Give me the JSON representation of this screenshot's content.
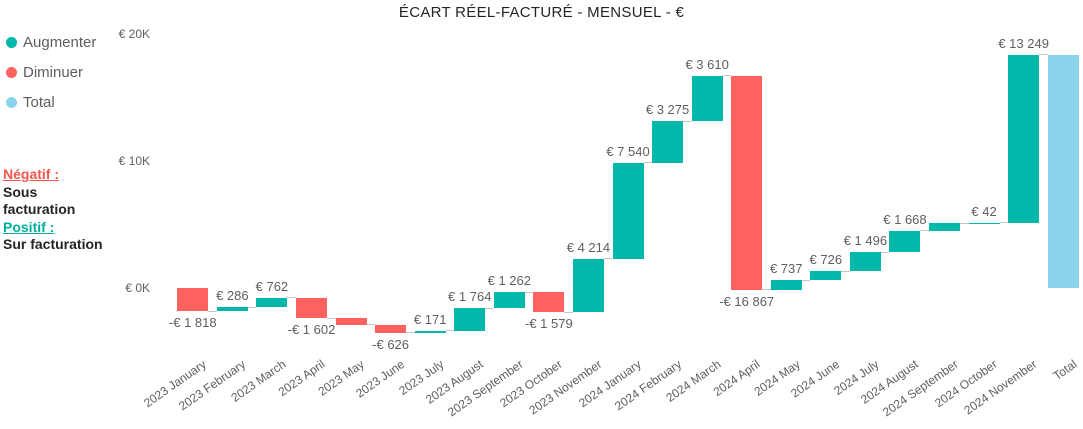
{
  "chart_data": {
    "type": "bar",
    "subtype": "waterfall",
    "title": "ÉCART RÉEL-FACTURÉ - MENSUEL - €",
    "grid": false,
    "legend_position": "top-left",
    "legend": [
      {
        "label": "Augmenter",
        "color": "#01B8AA",
        "kind": "increase"
      },
      {
        "label": "Diminuer",
        "color": "#FD625E",
        "kind": "decrease"
      },
      {
        "label": "Total",
        "color": "#8AD4EB",
        "kind": "total"
      }
    ],
    "colors": {
      "increase": "#01B8AA",
      "decrease": "#FD625E",
      "total": "#8AD4EB",
      "data_label": "#605E5C",
      "axis_label": "#605E5C",
      "connector": "#C8C6C4",
      "title": "#252423"
    },
    "y_axis": {
      "ticks": [
        {
          "label": "€ 20K",
          "value": 20000
        },
        {
          "label": "€ 10K",
          "value": 10000
        },
        {
          "label": "€ 0K",
          "value": 0
        }
      ],
      "range": [
        -4000,
        21000
      ]
    },
    "categories": [
      "2023 January",
      "2023 February",
      "2023 March",
      "2023 April",
      "2023 May",
      "2023 June",
      "2023 July",
      "2023 August",
      "2023 September",
      "2023 October",
      "2023 November",
      "2024 January",
      "2024 February",
      "2024 March",
      "2024 April",
      "2024 May",
      "2024 June",
      "2024 July",
      "2024 August",
      "2024 September",
      "2024 October",
      "2024 November",
      "Total"
    ],
    "points": [
      {
        "category": "2023 January",
        "value": -1818,
        "label": "-€ 1 818",
        "kind": "decrease"
      },
      {
        "category": "2023 February",
        "value": 286,
        "label": "€ 286",
        "kind": "increase"
      },
      {
        "category": "2023 March",
        "value": 762,
        "label": "€ 762",
        "kind": "increase"
      },
      {
        "category": "2023 April",
        "value": -1602,
        "label": "-€ 1 602",
        "kind": "decrease"
      },
      {
        "category": "2023 May",
        "value": -530,
        "label": null,
        "kind": "decrease"
      },
      {
        "category": "2023 June",
        "value": -626,
        "label": "-€ 626",
        "kind": "decrease"
      },
      {
        "category": "2023 July",
        "value": 171,
        "label": "€ 171",
        "kind": "increase"
      },
      {
        "category": "2023 August",
        "value": 1764,
        "label": "€ 1 764",
        "kind": "increase"
      },
      {
        "category": "2023 September",
        "value": 1262,
        "label": "€ 1 262",
        "kind": "increase"
      },
      {
        "category": "2023 October",
        "value": -1579,
        "label": "-€ 1 579",
        "kind": "decrease"
      },
      {
        "category": "2023 November",
        "value": 4214,
        "label": "€ 4 214",
        "kind": "increase"
      },
      {
        "category": "2024 January",
        "value": 7540,
        "label": "€ 7 540",
        "kind": "increase"
      },
      {
        "category": "2024 February",
        "value": 3275,
        "label": "€ 3 275",
        "kind": "increase"
      },
      {
        "category": "2024 March",
        "value": 3610,
        "label": "€ 3 610",
        "kind": "increase"
      },
      {
        "category": "2024 April",
        "value": -16867,
        "label": "-€ 16 867",
        "kind": "decrease"
      },
      {
        "category": "2024 May",
        "value": 737,
        "label": "€ 737",
        "kind": "increase"
      },
      {
        "category": "2024 June",
        "value": 726,
        "label": "€ 726",
        "kind": "increase"
      },
      {
        "category": "2024 July",
        "value": 1496,
        "label": "€ 1 496",
        "kind": "increase"
      },
      {
        "category": "2024 August",
        "value": 1668,
        "label": "€ 1 668",
        "kind": "increase"
      },
      {
        "category": "2024 September",
        "value": 600,
        "label": null,
        "kind": "increase"
      },
      {
        "category": "2024 October",
        "value": 42,
        "label": "€ 42",
        "kind": "increase"
      },
      {
        "category": "2024 November",
        "value": 13249,
        "label": "€ 13 249",
        "kind": "increase"
      },
      {
        "category": "Total",
        "value": 18380,
        "label": null,
        "kind": "total"
      }
    ]
  },
  "annotation": {
    "negative_heading": "Négatif :",
    "negative_text": "Sous facturation",
    "positive_heading": "Positif :",
    "positive_text": "Sur facturation",
    "negative_color": "#F4564E",
    "positive_color": "#00AEA0"
  }
}
